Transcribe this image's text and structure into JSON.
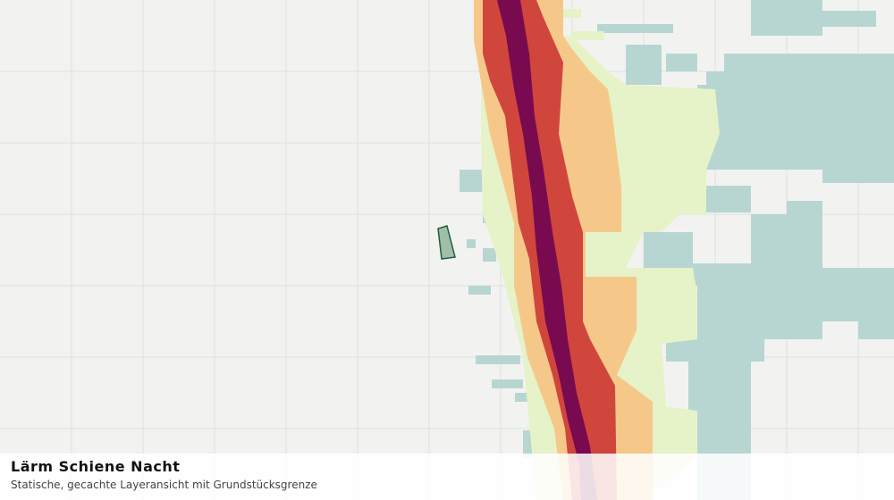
{
  "caption": {
    "title": "Lärm Schiene Nacht",
    "subtitle": "Statische, gecachte Layeransicht mit Grundstücksgrenze"
  }
}
